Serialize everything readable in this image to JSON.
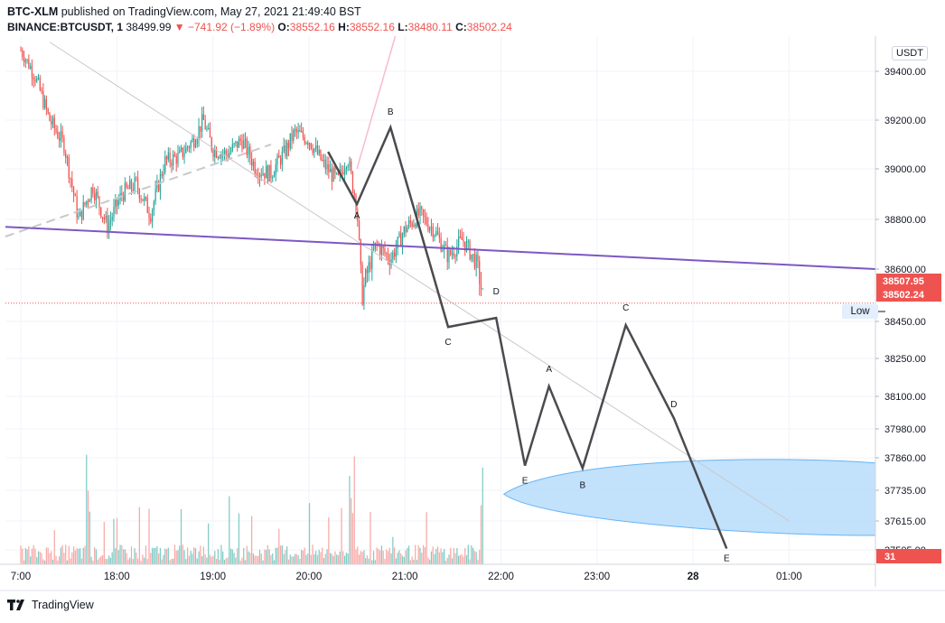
{
  "header": {
    "publisher": "BTC-XLM",
    "published_text": "published on TradingView.com, May 27, 2021 21:49:40 BST",
    "symbol": "BINANCE:BTCUSDT, 1",
    "last": "38499.99",
    "change": "−741.92 (−1.89%)",
    "o_label": "O:",
    "o": "38552.16",
    "h_label": "H:",
    "h": "38552.16",
    "l_label": "L:",
    "l": "38480.11",
    "c_label": "C:",
    "c": "38502.24"
  },
  "footer": {
    "brand": "TradingView"
  },
  "price_axis": {
    "currency": "USDT",
    "ticks": [
      "39400.00",
      "39200.00",
      "39000.00",
      "38800.00",
      "38600.00",
      "38450.00",
      "38250.00",
      "38100.00",
      "37980.00",
      "37860.00",
      "37735.00",
      "37615.00",
      "37505.00"
    ],
    "tags": [
      {
        "text": "38507.95",
        "color": "#ef5350"
      },
      {
        "text": "38502.24",
        "color": "#ef5350"
      },
      {
        "text": "31",
        "color": "#ef5350"
      }
    ],
    "low_label": "Low"
  },
  "time_axis": {
    "ticks": [
      "7:00",
      "18:00",
      "19:00",
      "20:00",
      "21:00",
      "22:00",
      "23:00",
      "28",
      "01:00"
    ]
  },
  "chart_data": {
    "type": "candlestick",
    "symbol": "BINANCE:BTCUSDT",
    "interval": "1",
    "ohlc_last": {
      "open": 38552.16,
      "high": 38552.16,
      "low": 38480.11,
      "close": 38502.24
    },
    "price_range": [
      37480,
      39560
    ],
    "time_range_hours": [
      16.9,
      26.0
    ],
    "grid": true,
    "colors": {
      "up": "#26a69a",
      "down": "#ef5350",
      "trendline": "#7e57c2",
      "wave": "#4b4b4f",
      "ellipse": "#a9d2f5"
    },
    "close_series_anchor": [
      [
        17.0,
        39500
      ],
      [
        17.15,
        39380
      ],
      [
        17.3,
        39200
      ],
      [
        17.45,
        39100
      ],
      [
        17.6,
        38800
      ],
      [
        17.75,
        38930
      ],
      [
        17.9,
        38770
      ],
      [
        18.05,
        38900
      ],
      [
        18.2,
        38940
      ],
      [
        18.35,
        38820
      ],
      [
        18.5,
        39030
      ],
      [
        18.65,
        39050
      ],
      [
        18.8,
        39120
      ],
      [
        18.9,
        39200
      ],
      [
        19.0,
        39080
      ],
      [
        19.15,
        39060
      ],
      [
        19.3,
        39120
      ],
      [
        19.45,
        39000
      ],
      [
        19.6,
        38980
      ],
      [
        19.75,
        39070
      ],
      [
        19.85,
        39150
      ],
      [
        20.0,
        39120
      ],
      [
        20.15,
        39020
      ],
      [
        20.3,
        38950
      ],
      [
        20.4,
        39050
      ],
      [
        20.5,
        38850
      ],
      [
        20.55,
        38520
      ],
      [
        20.7,
        38700
      ],
      [
        20.85,
        38640
      ],
      [
        21.0,
        38760
      ],
      [
        21.15,
        38820
      ],
      [
        21.3,
        38760
      ],
      [
        21.45,
        38650
      ],
      [
        21.6,
        38720
      ],
      [
        21.75,
        38620
      ],
      [
        21.82,
        38502.24
      ]
    ],
    "volume_spike_hours": [
      17.7,
      20.45,
      21.82
    ],
    "trendlines": [
      {
        "name": "",
        "points": [
          [
            16.9,
            38770
          ],
          [
            26.0,
            38600
          ]
        ]
      },
      {
        "name": "",
        "points": [
          [
            17.3,
            39540
          ],
          [
            25.0,
            37615
          ]
        ]
      }
    ],
    "wave_labels": [
      "A",
      "B",
      "C",
      "D",
      "E",
      "A",
      "B",
      "C",
      "D",
      "E"
    ],
    "wave_path": [
      [
        20.2,
        39070
      ],
      [
        20.5,
        38860
      ],
      [
        20.85,
        39170
      ],
      [
        21.45,
        38420
      ],
      [
        21.95,
        38460
      ],
      [
        22.25,
        37830
      ],
      [
        22.5,
        38140
      ],
      [
        22.85,
        37820
      ],
      [
        23.3,
        38430
      ],
      [
        23.8,
        38020
      ],
      [
        24.35,
        37510
      ]
    ]
  }
}
